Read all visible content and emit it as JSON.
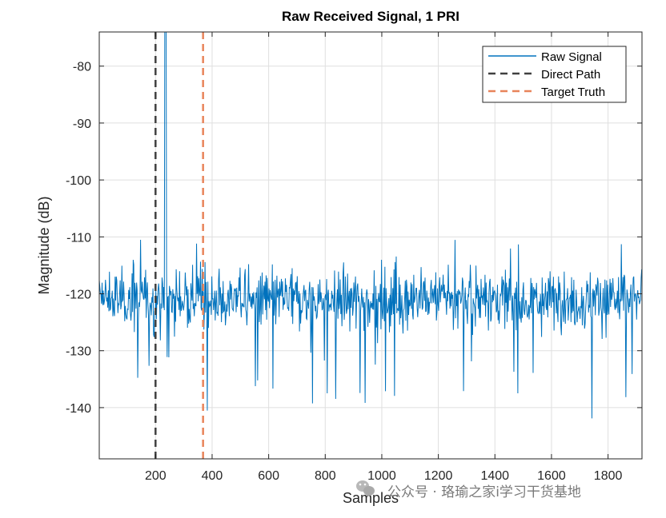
{
  "chart_data": {
    "type": "line",
    "title": "Raw Received Signal, 1 PRI",
    "xlabel": "Samples",
    "ylabel": "Magnitude (dB)",
    "xlim": [
      1,
      1920
    ],
    "ylim": [
      -149,
      -74
    ],
    "xticks": [
      200,
      400,
      600,
      800,
      1000,
      1200,
      1400,
      1600,
      1800
    ],
    "yticks": [
      -140,
      -130,
      -120,
      -110,
      -100,
      -90,
      -80
    ],
    "grid": true,
    "legend_position": "top-right",
    "series": [
      {
        "name": "Raw Signal",
        "color": "#0072BD",
        "style": "solid",
        "description": "noise floor around -121 dB with spread roughly -147 to -110 dB; strong direct-path return near sample 235 exceeding -74 dB",
        "noise_mean": -121,
        "peak_samples": [
          232,
          238
        ],
        "peak_value_above": -74
      },
      {
        "name": "Direct Path",
        "color": "#404040",
        "style": "dashed",
        "x": 200
      },
      {
        "name": "Target Truth",
        "color": "#E8845A",
        "style": "dashed",
        "x": 368
      }
    ],
    "legend": [
      "Raw Signal",
      "Direct Path",
      "Target Truth"
    ]
  },
  "watermark": "公众号 · 珞瑜之家i学习干货基地"
}
